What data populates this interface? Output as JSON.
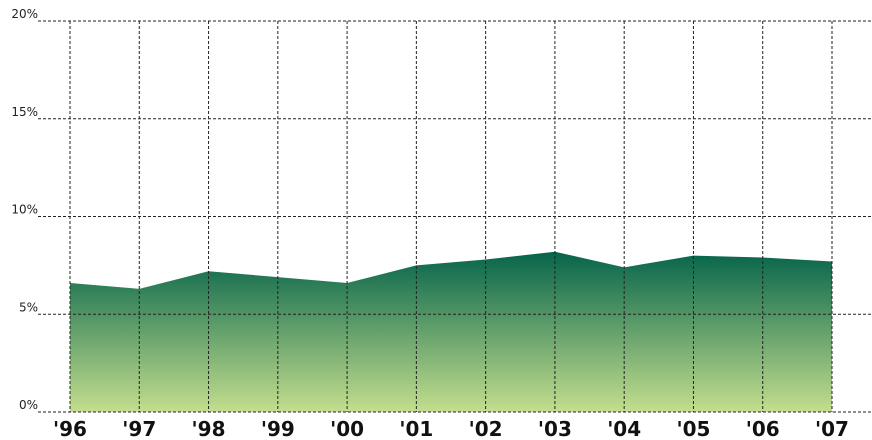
{
  "chart_data": {
    "type": "area",
    "categories": [
      "'96",
      "'97",
      "'98",
      "'99",
      "'00",
      "'01",
      "'02",
      "'03",
      "'04",
      "'05",
      "'06",
      "'07"
    ],
    "values": [
      6.6,
      6.3,
      7.2,
      6.9,
      6.6,
      7.5,
      7.8,
      8.2,
      7.4,
      8.0,
      7.9,
      7.7
    ],
    "ylim": [
      0,
      20
    ],
    "yticks": [
      {
        "value": 0,
        "label": "0%"
      },
      {
        "value": 5,
        "label": "5%"
      },
      {
        "value": 10,
        "label": "10%"
      },
      {
        "value": 15,
        "label": "15%"
      },
      {
        "value": 20,
        "label": "20%"
      }
    ],
    "grid": true,
    "color_top": "#06644a",
    "color_bottom": "#c4de8e"
  }
}
